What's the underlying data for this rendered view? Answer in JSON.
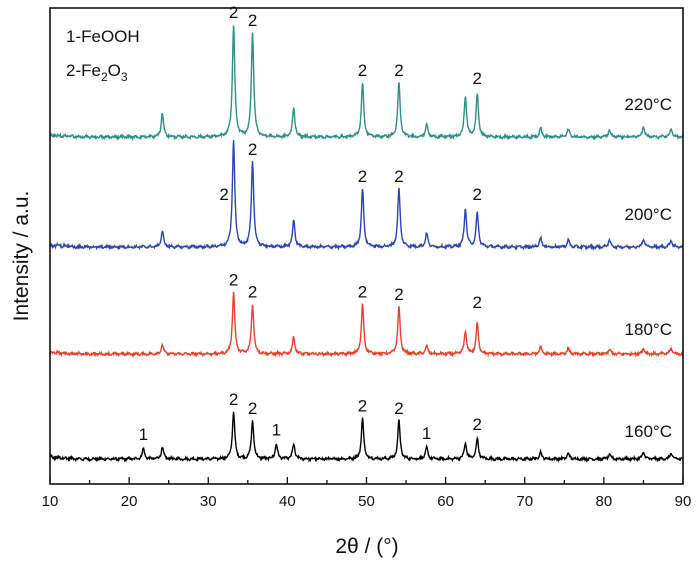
{
  "chart_data": {
    "type": "line",
    "xlabel": "2θ / (°)",
    "ylabel": "Intensity / a.u.",
    "xlim": [
      10,
      90
    ],
    "x_ticks": [
      10,
      20,
      30,
      40,
      50,
      60,
      70,
      80,
      90
    ],
    "grid": false,
    "legend": {
      "placement": "top-left",
      "entries": [
        {
          "label": "1-FeOOH"
        },
        {
          "label": "2-Fe2O3",
          "prefix": "2-Fe",
          "sub1": "2",
          "mid": "O",
          "sub2": "3"
        }
      ]
    },
    "series": [
      {
        "label": "160°C",
        "color": "#000000",
        "peaks": [
          {
            "x": 21.8,
            "h": 0.09
          },
          {
            "x": 24.2,
            "h": 0.1
          },
          {
            "x": 33.2,
            "h": 0.42
          },
          {
            "x": 35.6,
            "h": 0.34
          },
          {
            "x": 38.6,
            "h": 0.13
          },
          {
            "x": 40.8,
            "h": 0.13
          },
          {
            "x": 49.5,
            "h": 0.36
          },
          {
            "x": 54.1,
            "h": 0.34
          },
          {
            "x": 57.6,
            "h": 0.1
          },
          {
            "x": 62.5,
            "h": 0.14
          },
          {
            "x": 64.0,
            "h": 0.18
          },
          {
            "x": 72.0,
            "h": 0.06
          },
          {
            "x": 75.5,
            "h": 0.05
          },
          {
            "x": 80.7,
            "h": 0.04
          },
          {
            "x": 85.0,
            "h": 0.06
          },
          {
            "x": 88.5,
            "h": 0.05
          }
        ],
        "peak_labels": [
          {
            "x": 21.8,
            "text": "1"
          },
          {
            "x": 33.2,
            "text": "2"
          },
          {
            "x": 35.6,
            "text": "2"
          },
          {
            "x": 38.6,
            "text": "1"
          },
          {
            "x": 49.5,
            "text": "2"
          },
          {
            "x": 54.1,
            "text": "2"
          },
          {
            "x": 57.6,
            "text": "1"
          },
          {
            "x": 64.0,
            "text": "2"
          }
        ]
      },
      {
        "label": "180°C",
        "color": "#e8412b",
        "peaks": [
          {
            "x": 24.2,
            "h": 0.08
          },
          {
            "x": 33.2,
            "h": 0.55
          },
          {
            "x": 35.6,
            "h": 0.44
          },
          {
            "x": 40.8,
            "h": 0.15
          },
          {
            "x": 49.5,
            "h": 0.44
          },
          {
            "x": 54.1,
            "h": 0.42
          },
          {
            "x": 57.6,
            "h": 0.07
          },
          {
            "x": 62.5,
            "h": 0.2
          },
          {
            "x": 64.0,
            "h": 0.27
          },
          {
            "x": 72.0,
            "h": 0.06
          },
          {
            "x": 75.5,
            "h": 0.05
          },
          {
            "x": 80.7,
            "h": 0.04
          },
          {
            "x": 85.0,
            "h": 0.05
          },
          {
            "x": 88.5,
            "h": 0.05
          }
        ],
        "peak_labels": [
          {
            "x": 33.2,
            "text": "2"
          },
          {
            "x": 35.6,
            "text": "2"
          },
          {
            "x": 49.5,
            "text": "2"
          },
          {
            "x": 54.1,
            "text": "2"
          },
          {
            "x": 64.0,
            "text": "2"
          }
        ]
      },
      {
        "label": "200°C",
        "color": "#2b46b4",
        "peaks": [
          {
            "x": 24.2,
            "h": 0.14
          },
          {
            "x": 33.2,
            "h": 0.95
          },
          {
            "x": 35.6,
            "h": 0.76
          },
          {
            "x": 40.8,
            "h": 0.24
          },
          {
            "x": 49.5,
            "h": 0.52
          },
          {
            "x": 54.1,
            "h": 0.52
          },
          {
            "x": 57.6,
            "h": 0.12
          },
          {
            "x": 62.5,
            "h": 0.34
          },
          {
            "x": 64.0,
            "h": 0.3
          },
          {
            "x": 72.0,
            "h": 0.08
          },
          {
            "x": 75.5,
            "h": 0.06
          },
          {
            "x": 80.7,
            "h": 0.06
          },
          {
            "x": 85.0,
            "h": 0.07
          },
          {
            "x": 88.5,
            "h": 0.06
          }
        ],
        "peak_labels": [
          {
            "x": 32.0,
            "text": "2"
          },
          {
            "x": 35.6,
            "text": "2"
          },
          {
            "x": 49.5,
            "text": "2"
          },
          {
            "x": 54.1,
            "text": "2"
          },
          {
            "x": 64.0,
            "text": "2"
          }
        ]
      },
      {
        "label": "220°C",
        "color": "#2e8f85",
        "peaks": [
          {
            "x": 24.2,
            "h": 0.21
          },
          {
            "x": 33.2,
            "h": 1.0
          },
          {
            "x": 35.6,
            "h": 0.93
          },
          {
            "x": 40.8,
            "h": 0.26
          },
          {
            "x": 49.5,
            "h": 0.48
          },
          {
            "x": 54.1,
            "h": 0.48
          },
          {
            "x": 57.6,
            "h": 0.11
          },
          {
            "x": 62.5,
            "h": 0.36
          },
          {
            "x": 64.0,
            "h": 0.38
          },
          {
            "x": 72.0,
            "h": 0.08
          },
          {
            "x": 75.5,
            "h": 0.07
          },
          {
            "x": 80.7,
            "h": 0.06
          },
          {
            "x": 85.0,
            "h": 0.09
          },
          {
            "x": 88.5,
            "h": 0.07
          }
        ],
        "peak_labels": [
          {
            "x": 33.2,
            "text": "2"
          },
          {
            "x": 35.6,
            "text": "2"
          },
          {
            "x": 49.5,
            "text": "2"
          },
          {
            "x": 54.1,
            "text": "2"
          },
          {
            "x": 64.0,
            "text": "2"
          }
        ]
      }
    ]
  }
}
